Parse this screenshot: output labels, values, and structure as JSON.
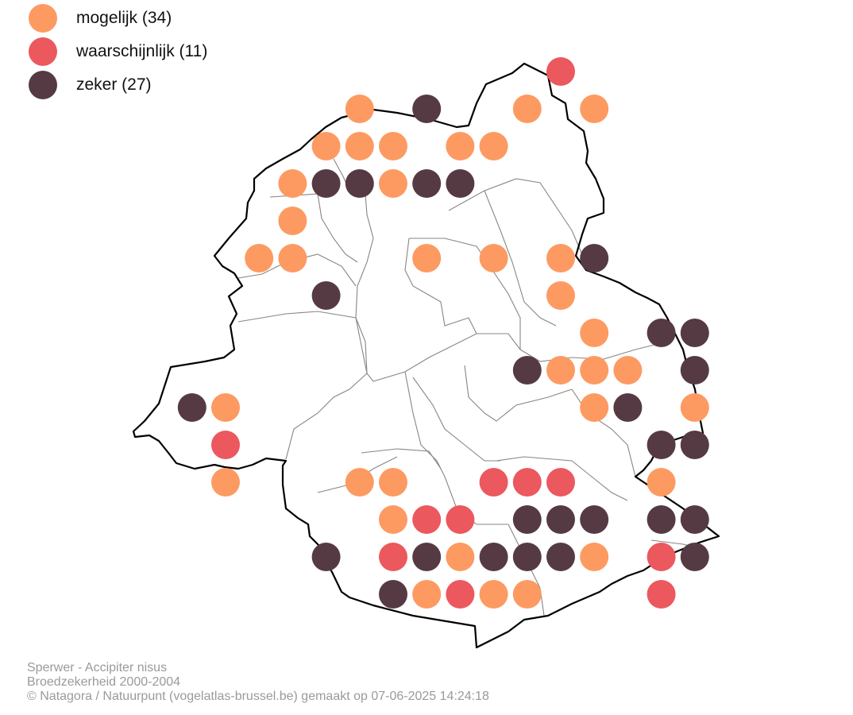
{
  "legend": {
    "items": [
      {
        "label": "mogelijk (34)",
        "category": "mogelijk",
        "color": "#FD9A62"
      },
      {
        "label": "waarschijnlijk (11)",
        "category": "waarschijnlijk",
        "color": "#EB585E"
      },
      {
        "label": "zeker (27)",
        "category": "zeker",
        "color": "#553A44"
      }
    ]
  },
  "colors": {
    "mogelijk": "#FD9A62",
    "waarschijnlijk": "#EB585E",
    "zeker": "#553A44",
    "region_outline": "#000000",
    "municipality_lines": "#8a8580"
  },
  "footer": {
    "line1": "Sperwer - Accipiter nisus",
    "line2": "Broedzekerheid 2000-2004",
    "line3": "© Natagora / Natuurpunt (vogelatlas-brussel.be) gemaakt op 07-06-2025 14:24:18"
  },
  "observations": [
    {
      "row": 1,
      "col": 10,
      "status": "waarschijnlijk"
    },
    {
      "row": 2,
      "col": 4,
      "status": "mogelijk"
    },
    {
      "row": 2,
      "col": 6,
      "status": "zeker"
    },
    {
      "row": 2,
      "col": 9,
      "status": "mogelijk"
    },
    {
      "row": 2,
      "col": 11,
      "status": "mogelijk"
    },
    {
      "row": 3,
      "col": 3,
      "status": "mogelijk"
    },
    {
      "row": 3,
      "col": 4,
      "status": "mogelijk"
    },
    {
      "row": 3,
      "col": 5,
      "status": "mogelijk"
    },
    {
      "row": 3,
      "col": 7,
      "status": "mogelijk"
    },
    {
      "row": 3,
      "col": 8,
      "status": "mogelijk"
    },
    {
      "row": 4,
      "col": 2,
      "status": "mogelijk"
    },
    {
      "row": 4,
      "col": 3,
      "status": "zeker"
    },
    {
      "row": 4,
      "col": 4,
      "status": "zeker"
    },
    {
      "row": 4,
      "col": 5,
      "status": "mogelijk"
    },
    {
      "row": 4,
      "col": 6,
      "status": "zeker"
    },
    {
      "row": 4,
      "col": 7,
      "status": "zeker"
    },
    {
      "row": 5,
      "col": 2,
      "status": "mogelijk"
    },
    {
      "row": 6,
      "col": 1,
      "status": "mogelijk"
    },
    {
      "row": 6,
      "col": 2,
      "status": "mogelijk"
    },
    {
      "row": 6,
      "col": 6,
      "status": "mogelijk"
    },
    {
      "row": 6,
      "col": 8,
      "status": "mogelijk"
    },
    {
      "row": 6,
      "col": 10,
      "status": "mogelijk"
    },
    {
      "row": 6,
      "col": 11,
      "status": "zeker"
    },
    {
      "row": 7,
      "col": 3,
      "status": "zeker"
    },
    {
      "row": 7,
      "col": 10,
      "status": "mogelijk"
    },
    {
      "row": 8,
      "col": 11,
      "status": "mogelijk"
    },
    {
      "row": 8,
      "col": 13,
      "status": "zeker"
    },
    {
      "row": 8,
      "col": 14,
      "status": "zeker"
    },
    {
      "row": 9,
      "col": 9,
      "status": "zeker"
    },
    {
      "row": 9,
      "col": 10,
      "status": "mogelijk"
    },
    {
      "row": 9,
      "col": 11,
      "status": "mogelijk"
    },
    {
      "row": 9,
      "col": 12,
      "status": "mogelijk"
    },
    {
      "row": 9,
      "col": 14,
      "status": "zeker"
    },
    {
      "row": 10,
      "col": -1,
      "status": "zeker"
    },
    {
      "row": 10,
      "col": 0,
      "status": "mogelijk"
    },
    {
      "row": 10,
      "col": 11,
      "status": "mogelijk"
    },
    {
      "row": 10,
      "col": 12,
      "status": "zeker"
    },
    {
      "row": 10,
      "col": 14,
      "status": "mogelijk"
    },
    {
      "row": 11,
      "col": 0,
      "status": "waarschijnlijk"
    },
    {
      "row": 11,
      "col": 13,
      "status": "zeker"
    },
    {
      "row": 11,
      "col": 14,
      "status": "zeker"
    },
    {
      "row": 12,
      "col": 0,
      "status": "mogelijk"
    },
    {
      "row": 12,
      "col": 4,
      "status": "mogelijk"
    },
    {
      "row": 12,
      "col": 5,
      "status": "mogelijk"
    },
    {
      "row": 12,
      "col": 8,
      "status": "waarschijnlijk"
    },
    {
      "row": 12,
      "col": 9,
      "status": "waarschijnlijk"
    },
    {
      "row": 12,
      "col": 10,
      "status": "waarschijnlijk"
    },
    {
      "row": 12,
      "col": 13,
      "status": "mogelijk"
    },
    {
      "row": 13,
      "col": 5,
      "status": "mogelijk"
    },
    {
      "row": 13,
      "col": 6,
      "status": "waarschijnlijk"
    },
    {
      "row": 13,
      "col": 7,
      "status": "waarschijnlijk"
    },
    {
      "row": 13,
      "col": 9,
      "status": "zeker"
    },
    {
      "row": 13,
      "col": 10,
      "status": "zeker"
    },
    {
      "row": 13,
      "col": 11,
      "status": "zeker"
    },
    {
      "row": 13,
      "col": 13,
      "status": "zeker"
    },
    {
      "row": 13,
      "col": 14,
      "status": "zeker"
    },
    {
      "row": 14,
      "col": 3,
      "status": "zeker"
    },
    {
      "row": 14,
      "col": 5,
      "status": "waarschijnlijk"
    },
    {
      "row": 14,
      "col": 6,
      "status": "zeker"
    },
    {
      "row": 14,
      "col": 7,
      "status": "mogelijk"
    },
    {
      "row": 14,
      "col": 8,
      "status": "zeker"
    },
    {
      "row": 14,
      "col": 9,
      "status": "zeker"
    },
    {
      "row": 14,
      "col": 10,
      "status": "zeker"
    },
    {
      "row": 14,
      "col": 11,
      "status": "mogelijk"
    },
    {
      "row": 14,
      "col": 13,
      "status": "waarschijnlijk"
    },
    {
      "row": 14,
      "col": 14,
      "status": "zeker"
    },
    {
      "row": 15,
      "col": 5,
      "status": "zeker"
    },
    {
      "row": 15,
      "col": 6,
      "status": "mogelijk"
    },
    {
      "row": 15,
      "col": 7,
      "status": "waarschijnlijk"
    },
    {
      "row": 15,
      "col": 8,
      "status": "mogelijk"
    },
    {
      "row": 15,
      "col": 9,
      "status": "mogelijk"
    },
    {
      "row": 15,
      "col": 13,
      "status": "waarschijnlijk"
    }
  ]
}
